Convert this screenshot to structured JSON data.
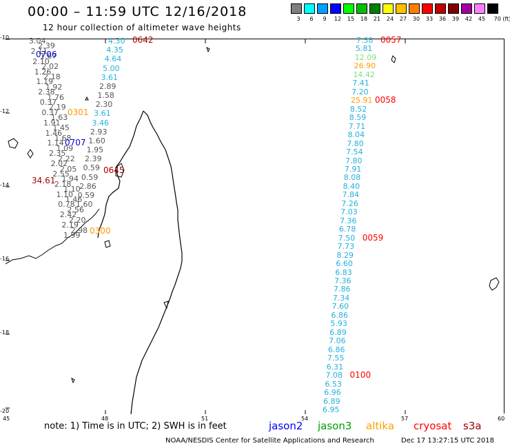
{
  "header": {
    "title": "00:00 – 11:59 UTC 12/16/2018",
    "subtitle": "12 hour collection of altimeter wave heights"
  },
  "colorscale": {
    "labels": [
      "3",
      "6",
      "9",
      "12",
      "15",
      "18",
      "21",
      "24",
      "27",
      "30",
      "33",
      "36",
      "39",
      "42",
      "45",
      "70 (ft)"
    ],
    "colors": [
      "#808080",
      "#00ffff",
      "#00a0ff",
      "#0000ff",
      "#00ff00",
      "#00c000",
      "#008000",
      "#ffff00",
      "#ffc000",
      "#ff8000",
      "#ff0000",
      "#c00000",
      "#800000",
      "#a000a0",
      "#ff80ff",
      "#000000"
    ]
  },
  "axes": {
    "y_labels": [
      "-10",
      "-12",
      "-14",
      "-16",
      "-18",
      "-20"
    ],
    "x_labels": [
      "45",
      "48",
      "51",
      "54",
      "57",
      "60"
    ]
  },
  "series": {
    "east_track": {
      "values": [
        "7.38",
        "5.81",
        "12.09",
        "26.90",
        "14.42",
        "7.41",
        "7.20",
        "25.91",
        "8.52",
        "8.59",
        "7.71",
        "8.04",
        "7.80",
        "7.54",
        "7.80",
        "7.91",
        "8.08",
        "8.40",
        "7.84",
        "7.26",
        "7.03",
        "7.36",
        "6.78",
        "7.50",
        "7.73",
        "8.29",
        "6.60",
        "6.83",
        "7.36",
        "7.86",
        "7.34",
        "7.60",
        "6.86",
        "5.93",
        "6.89",
        "7.06",
        "6.86",
        "7.55",
        "6.31",
        "7.08",
        "6.53",
        "6.96",
        "6.89",
        "6.95"
      ],
      "colors": [
        "c",
        "c",
        "g",
        "o",
        "g",
        "c",
        "c",
        "o",
        "c",
        "c",
        "c",
        "c",
        "c",
        "c",
        "c",
        "c",
        "c",
        "c",
        "c",
        "c",
        "c",
        "c",
        "c",
        "c",
        "c",
        "c",
        "c",
        "c",
        "c",
        "c",
        "c",
        "c",
        "c",
        "c",
        "c",
        "c",
        "c",
        "c",
        "c",
        "c",
        "c",
        "c",
        "c",
        "c"
      ],
      "times": [
        {
          "label": "0057",
          "row": 0,
          "color": "red"
        },
        {
          "label": "0058",
          "row": 7,
          "color": "red"
        },
        {
          "label": "0059",
          "row": 23,
          "color": "red"
        },
        {
          "label": "0100",
          "row": 39,
          "color": "red"
        }
      ]
    },
    "west_values": [
      "3.04",
      "2.39",
      "2.11",
      "1.67",
      "2.10",
      "2.02",
      "1.26",
      "2.18",
      "1.19",
      "1.92",
      "2.38",
      "1.76",
      "0.37",
      "2.19",
      "0.37",
      "1.63",
      "1.91",
      "1.45",
      "1.46",
      "1.68",
      "1.14",
      "1.09",
      "2.35",
      "2.22",
      "2.02",
      "2.05",
      "2.55",
      "1.94",
      "2.18",
      "1.10",
      "1.10",
      "1.46",
      "0.78",
      "2.56",
      "2.42",
      "2.20",
      "2.19",
      "2.98",
      "1.99"
    ],
    "west_times": [
      {
        "label": "0706",
        "color": "blue"
      },
      {
        "label": "0301",
        "color": "orange"
      },
      {
        "label": "0707",
        "color": "blue"
      },
      {
        "label": "0300",
        "color": "orange"
      },
      {
        "label": "34.61",
        "color": "darkred"
      }
    ],
    "mid_track": {
      "values": [
        "4.30",
        "4.35",
        "4.64",
        "5.00",
        "3.61",
        "2.89",
        "1.58",
        "2.30",
        "3.61",
        "3.46",
        "2.93",
        "1.60",
        "1.95",
        "2.39",
        "0.59",
        "0.59",
        "2.86",
        "0.59",
        "1.60"
      ],
      "colors": [
        "c",
        "c",
        "c",
        "c",
        "c",
        "k",
        "k",
        "k",
        "c",
        "c",
        "k",
        "k",
        "k",
        "k",
        "k",
        "k",
        "k",
        "k",
        "k"
      ],
      "times": [
        {
          "label": "0642",
          "color": "darkred"
        },
        {
          "label": "0645",
          "color": "darkred"
        }
      ]
    }
  },
  "footer": {
    "note": "note:  1) Time is in UTC; 2) SWH is in feet",
    "satellites": [
      {
        "name": "jason2",
        "color": "#0000ff"
      },
      {
        "name": "jason3",
        "color": "#00a000"
      },
      {
        "name": "altika",
        "color": "#ffa000"
      },
      {
        "name": "cryosat",
        "color": "#ff0000"
      },
      {
        "name": "s3a",
        "color": "#a00000"
      }
    ],
    "credit": "NOAA/NESDIS Center for Satellite Applications and Research",
    "stamp": "Dec 17 13:27:15 UTC 2018"
  }
}
